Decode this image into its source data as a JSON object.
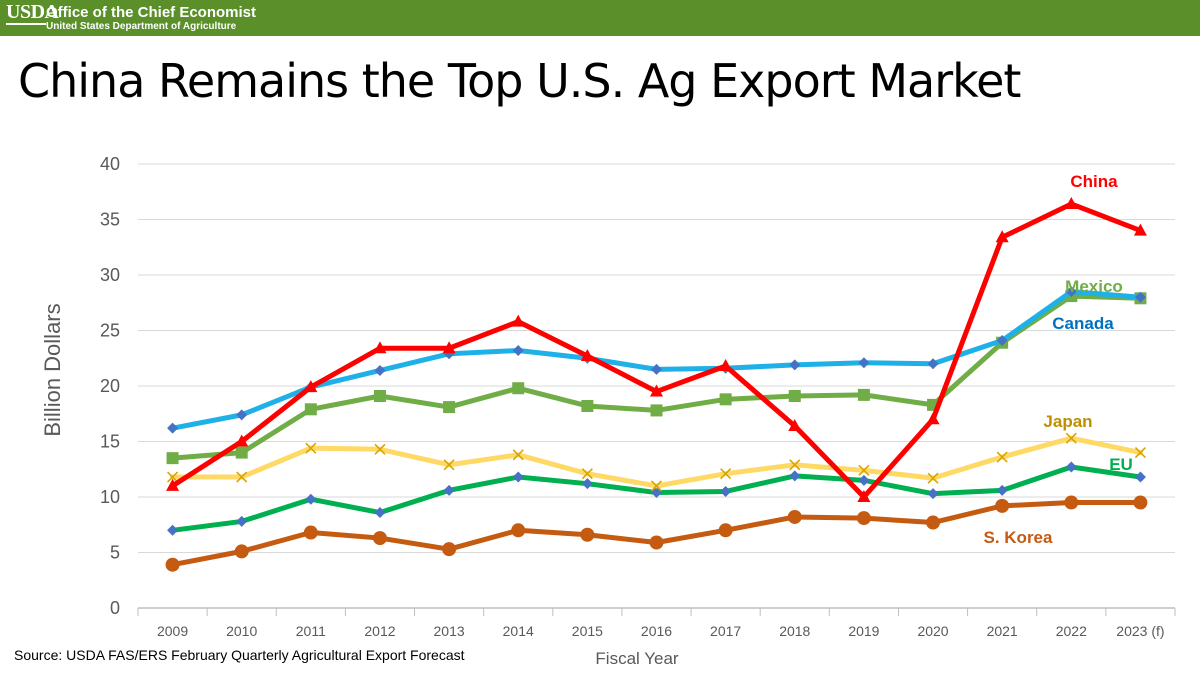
{
  "header": {
    "logo": "USDA",
    "org": "Office of the Chief Economist",
    "dept": "United States Department of Agriculture"
  },
  "title": "China Remains the Top U.S. Ag Export Market",
  "source": "Source: USDA FAS/ERS February Quarterly Agricultural Export Forecast",
  "chart_data": {
    "type": "line",
    "xlabel": "Fiscal Year",
    "ylabel": "Billion Dollars",
    "ylim": [
      0,
      40
    ],
    "yticks": [
      0,
      5,
      10,
      15,
      20,
      25,
      30,
      35,
      40
    ],
    "grid": true,
    "categories": [
      "2009",
      "2010",
      "2011",
      "2012",
      "2013",
      "2014",
      "2015",
      "2016",
      "2017",
      "2018",
      "2019",
      "2020",
      "2021",
      "2022",
      "2023 (f)"
    ],
    "series": [
      {
        "name": "China",
        "color": "#ff0000",
        "label_color": "#ff0000",
        "marker": "triangle",
        "values": [
          11.0,
          15.0,
          19.9,
          23.4,
          23.4,
          25.8,
          22.7,
          19.5,
          21.8,
          16.4,
          10.0,
          17.0,
          33.4,
          36.4,
          34.0
        ]
      },
      {
        "name": "Canada",
        "color": "#1fb0e8",
        "label_color": "#0070c0",
        "marker": "diamond",
        "values": [
          16.2,
          17.4,
          19.9,
          21.4,
          22.9,
          23.2,
          22.5,
          21.5,
          21.6,
          21.9,
          22.1,
          22.0,
          24.1,
          28.5,
          28.0
        ]
      },
      {
        "name": "Mexico",
        "color": "#70ad47",
        "label_color": "#70ad47",
        "marker": "square",
        "values": [
          13.5,
          14.0,
          17.9,
          19.1,
          18.1,
          19.8,
          18.2,
          17.8,
          18.8,
          19.1,
          19.2,
          18.3,
          23.9,
          28.1,
          27.9
        ]
      },
      {
        "name": "Japan",
        "color": "#ffd966",
        "label_color": "#bf8f00",
        "marker": "x",
        "values": [
          11.8,
          11.8,
          14.4,
          14.3,
          12.9,
          13.8,
          12.1,
          11.0,
          12.1,
          12.9,
          12.4,
          11.7,
          13.6,
          15.3,
          14.0
        ]
      },
      {
        "name": "EU",
        "color": "#00b050",
        "label_color": "#00b050",
        "marker": "diamond",
        "values": [
          7.0,
          7.8,
          9.8,
          8.6,
          10.6,
          11.8,
          11.2,
          10.4,
          10.5,
          11.9,
          11.5,
          10.3,
          10.6,
          12.7,
          11.8
        ]
      },
      {
        "name": "S. Korea",
        "color": "#c55a11",
        "label_color": "#c55a11",
        "marker": "circle",
        "values": [
          3.9,
          5.1,
          6.8,
          6.3,
          5.3,
          7.0,
          6.6,
          5.9,
          7.0,
          8.2,
          8.1,
          7.7,
          9.2,
          9.5,
          9.5
        ]
      }
    ]
  }
}
